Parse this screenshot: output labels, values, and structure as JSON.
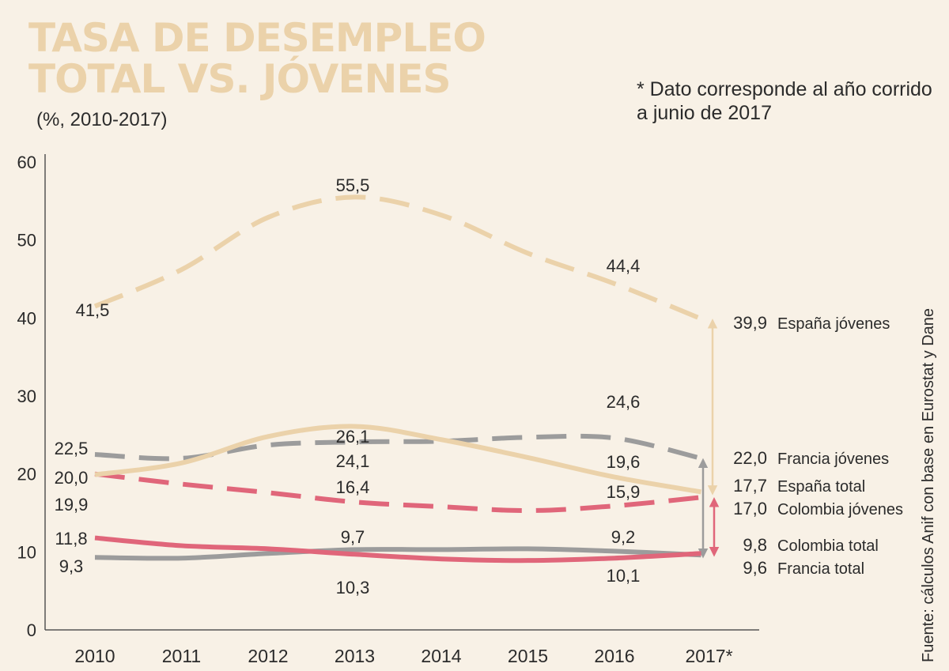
{
  "header": {
    "title_line1": "TASA DE DESEMPLEO",
    "title_line2": "TOTAL VS. JÓVENES",
    "subtitle": "(%, 2010-2017)",
    "note": "* Dato corresponde al año corrido a junio de 2017",
    "source": "Fuente: cálculos Anif con base en Eurostat y Dane"
  },
  "colors": {
    "espana": "#ebd2aa",
    "francia": "#9c9c9c",
    "colombia": "#e0667a",
    "axis": "#555555",
    "title": "#ebd2aa"
  },
  "chart_data": {
    "type": "line",
    "title": "TASA DE DESEMPLEO TOTAL VS. JÓVENES",
    "subtitle": "(%, 2010-2017)",
    "xlabel": "",
    "ylabel": "",
    "ylim": [
      0,
      60
    ],
    "yticks": [
      "0",
      "10",
      "20",
      "30",
      "40",
      "50",
      "60"
    ],
    "categories": [
      "2010",
      "2011",
      "2012",
      "2013",
      "2014",
      "2015",
      "2016",
      "2017*"
    ],
    "series": [
      {
        "key": "espana_jovenes",
        "name": "España jóvenes",
        "dashed": true,
        "color": "#ebd2aa",
        "values": [
          41.5,
          46.2,
          52.9,
          55.5,
          53.2,
          48.3,
          44.4,
          39.9
        ],
        "labels": [
          {
            "i": 0,
            "text": "41,5"
          },
          {
            "i": 3,
            "text": "55,5"
          },
          {
            "i": 6,
            "text": "44,4"
          }
        ],
        "end_label": "39,9"
      },
      {
        "key": "francia_jovenes",
        "name": "Francia jóvenes",
        "dashed": true,
        "color": "#9c9c9c",
        "values": [
          22.5,
          22.0,
          23.7,
          24.1,
          24.2,
          24.7,
          24.6,
          22.0
        ],
        "labels": [
          {
            "i": 0,
            "text": "22,5"
          },
          {
            "i": 3,
            "text": "24,1"
          },
          {
            "i": 6,
            "text": "24,6"
          }
        ],
        "end_label": "22,0"
      },
      {
        "key": "espana_total",
        "name": "España total",
        "dashed": false,
        "color": "#ebd2aa",
        "values": [
          19.9,
          21.4,
          24.8,
          26.1,
          24.4,
          22.1,
          19.6,
          17.7
        ],
        "labels": [
          {
            "i": 0,
            "text": "19,9"
          },
          {
            "i": 3,
            "text": "26,1"
          },
          {
            "i": 6,
            "text": "19,6"
          }
        ],
        "end_label": "17,7"
      },
      {
        "key": "colombia_jovenes",
        "name": "Colombia jóvenes",
        "dashed": true,
        "color": "#e0667a",
        "values": [
          20.0,
          18.7,
          17.6,
          16.4,
          15.8,
          15.3,
          15.9,
          17.0
        ],
        "labels": [
          {
            "i": 0,
            "text": "20,0"
          },
          {
            "i": 3,
            "text": "16,4"
          },
          {
            "i": 6,
            "text": "15,9"
          }
        ],
        "end_label": "17,0"
      },
      {
        "key": "colombia_total",
        "name": "Colombia total",
        "dashed": false,
        "color": "#e0667a",
        "values": [
          11.8,
          10.8,
          10.4,
          9.7,
          9.1,
          8.9,
          9.2,
          9.8
        ],
        "labels": [
          {
            "i": 0,
            "text": "11,8"
          },
          {
            "i": 3,
            "text": "9,7"
          },
          {
            "i": 6,
            "text": "9,2"
          }
        ],
        "end_label": "9,8"
      },
      {
        "key": "francia_total",
        "name": "Francia total",
        "dashed": false,
        "color": "#9c9c9c",
        "values": [
          9.3,
          9.2,
          9.8,
          10.3,
          10.3,
          10.4,
          10.1,
          9.6
        ],
        "labels": [
          {
            "i": 0,
            "text": "9,3"
          },
          {
            "i": 3,
            "text": "10,3"
          },
          {
            "i": 6,
            "text": "10,1"
          }
        ],
        "end_label": "9,6"
      }
    ],
    "gaps": [
      {
        "from": "espana_total",
        "to": "espana_jovenes",
        "color": "#ebd2aa"
      },
      {
        "from": "francia_total",
        "to": "francia_jovenes",
        "color": "#9c9c9c"
      },
      {
        "from": "colombia_total",
        "to": "colombia_jovenes",
        "color": "#e0667a"
      }
    ]
  }
}
